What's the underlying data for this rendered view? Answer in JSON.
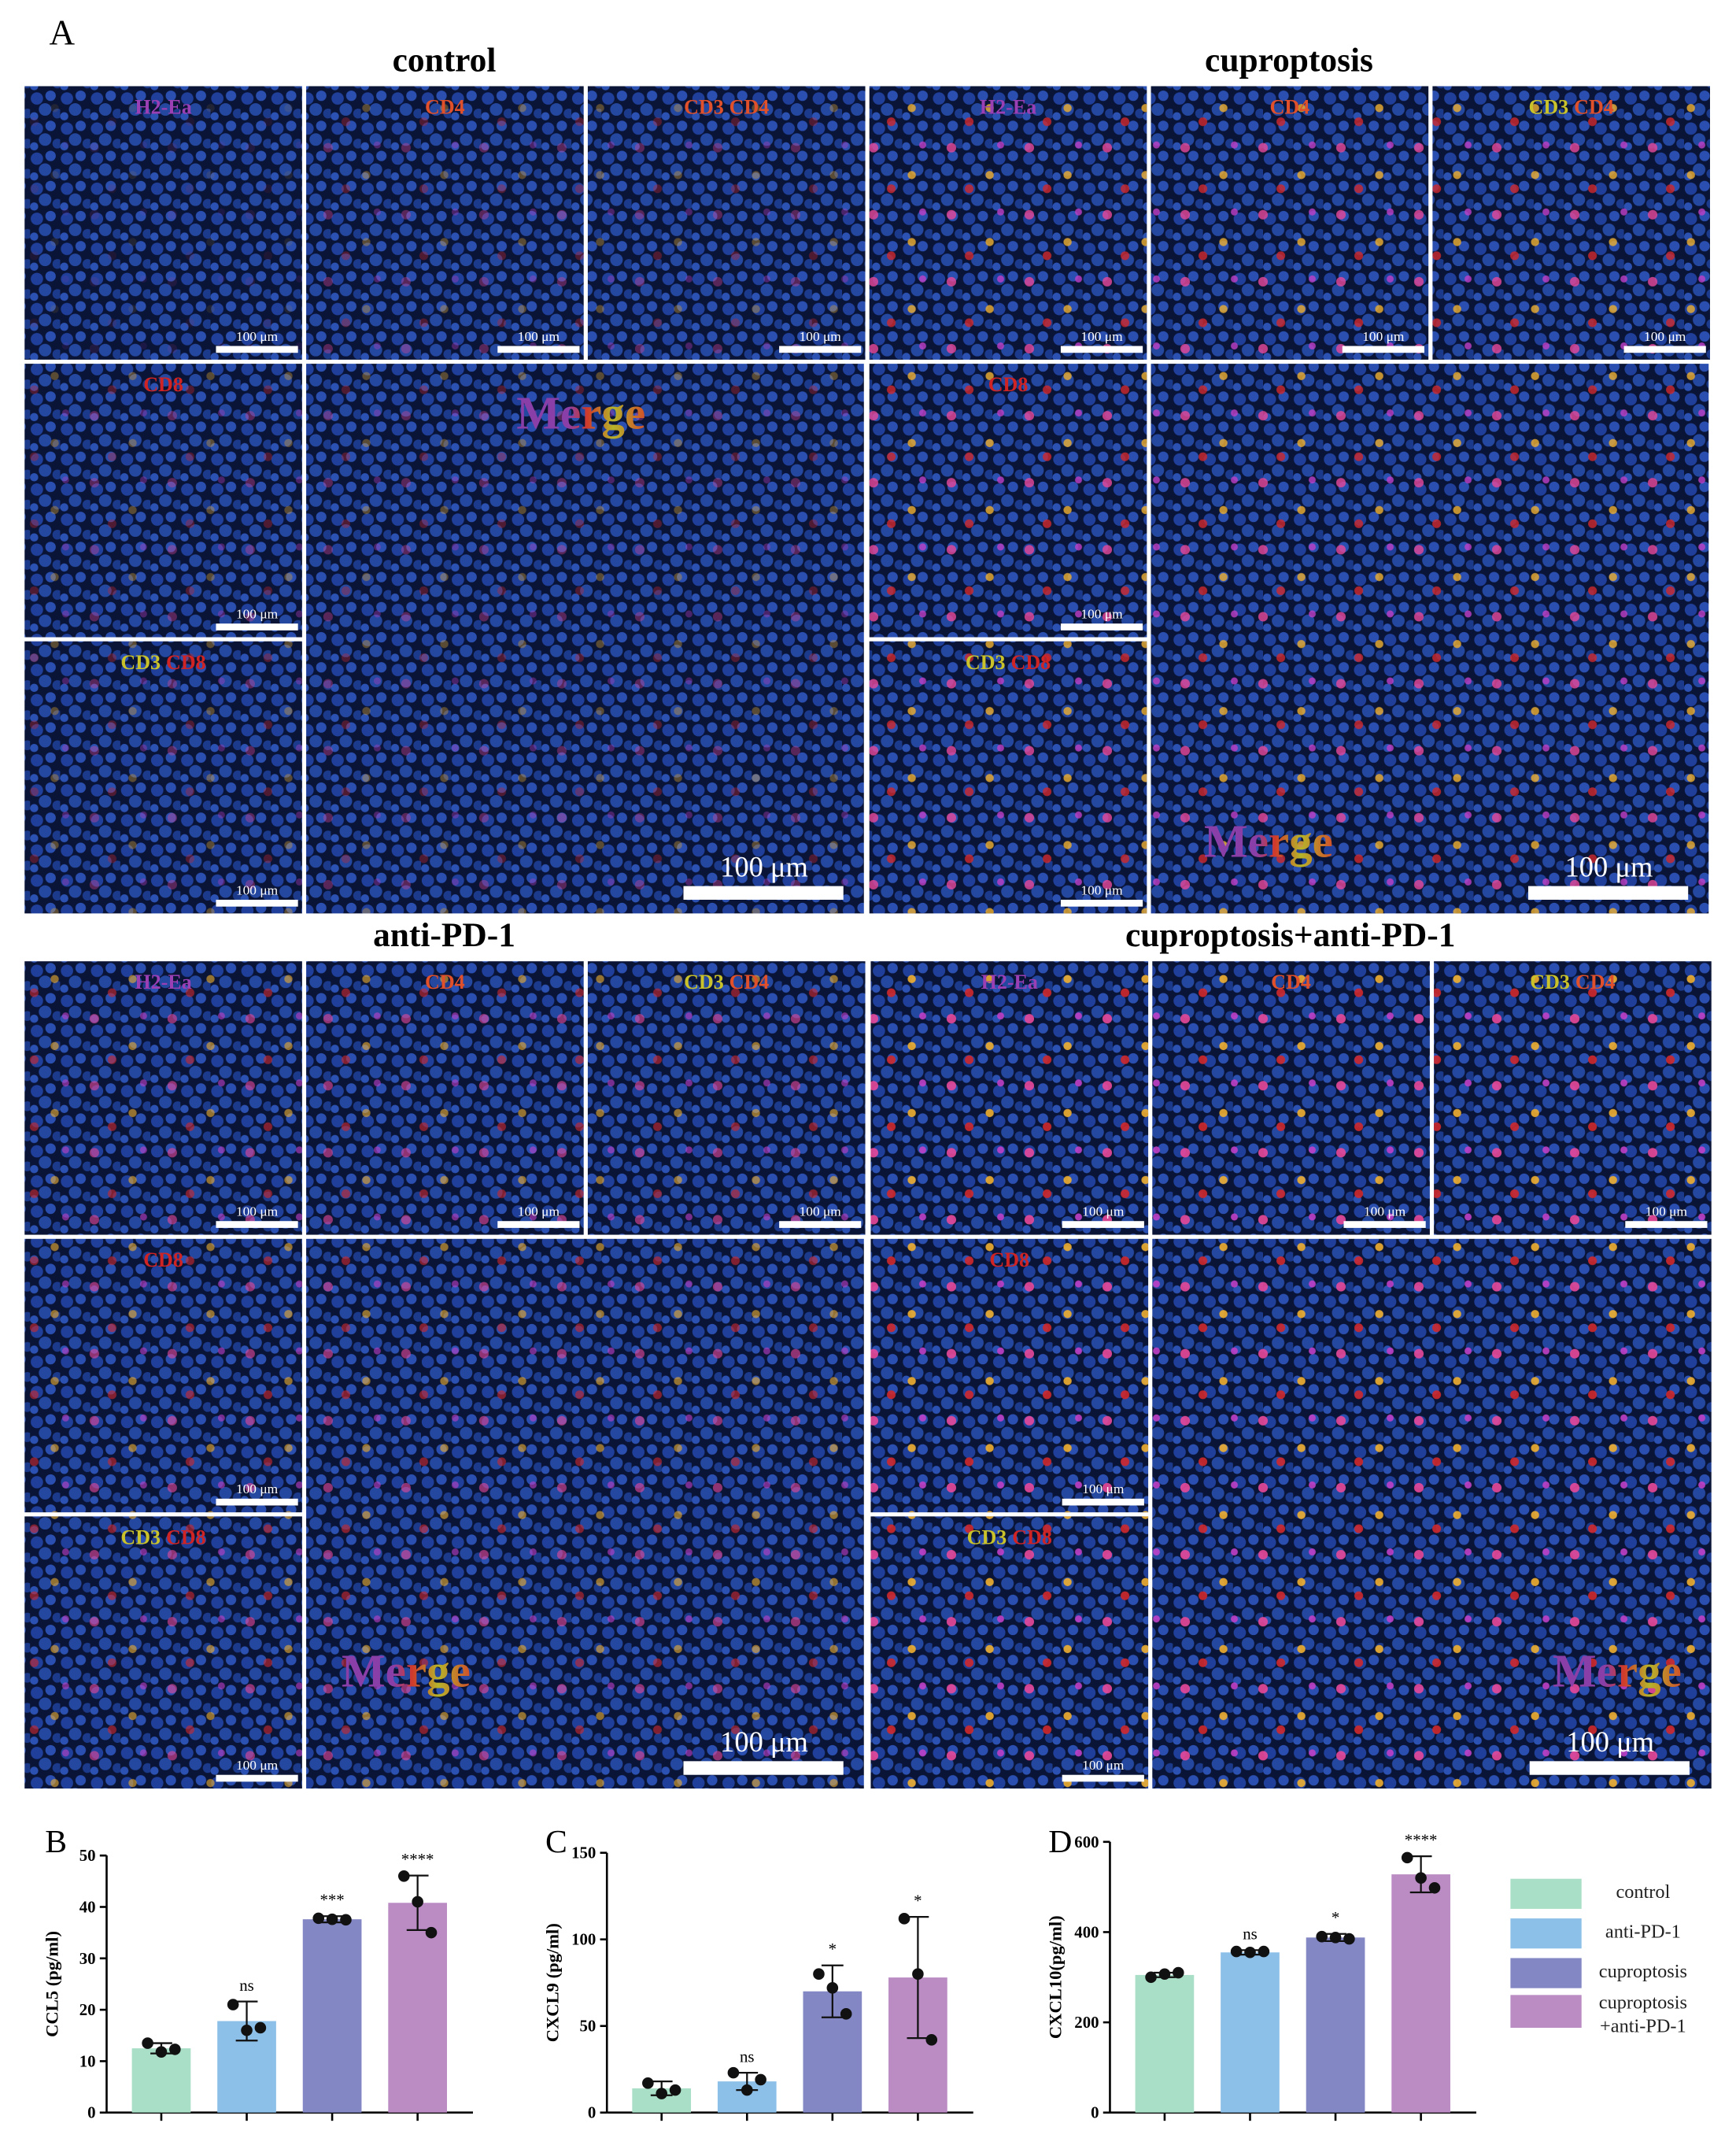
{
  "figure_a": {
    "label": "A",
    "groups": [
      {
        "title": "control",
        "tiles": [
          {
            "label": [
              {
                "text": "H2-Ea",
                "color": "#9b3fb5"
              }
            ],
            "scale": "100 μm"
          },
          {
            "label": [
              {
                "text": "CD4",
                "color": "#e0502a"
              }
            ],
            "scale": "100 μm"
          },
          {
            "label": [
              {
                "text": "CD3",
                "color": "#e0502a"
              },
              {
                "text": "CD4",
                "color": "#e0502a"
              }
            ],
            "scale": "100 μm"
          },
          {
            "label": [
              {
                "text": "CD8",
                "color": "#d02424"
              }
            ],
            "scale": "100 μm"
          },
          {
            "label": [
              {
                "text": "CD3",
                "color": "#c9c22a"
              },
              {
                "text": "CD8",
                "color": "#d02424"
              }
            ],
            "scale": "100 μm"
          }
        ],
        "merge": {
          "label": "Merge",
          "scale": "100 μm"
        }
      },
      {
        "title": "cuproptosis",
        "tiles": [
          {
            "label": [
              {
                "text": "H2-Ea",
                "color": "#9b3fb5"
              }
            ],
            "scale": "100 μm"
          },
          {
            "label": [
              {
                "text": "CD4",
                "color": "#e0502a"
              }
            ],
            "scale": "100 μm"
          },
          {
            "label": [
              {
                "text": "CD3",
                "color": "#c9c22a"
              },
              {
                "text": "CD4",
                "color": "#e0502a"
              }
            ],
            "scale": "100 μm"
          },
          {
            "label": [
              {
                "text": "CD8",
                "color": "#d02424"
              }
            ],
            "scale": "100 μm"
          },
          {
            "label": [
              {
                "text": "CD3",
                "color": "#c9c22a"
              },
              {
                "text": "CD8",
                "color": "#d02424"
              }
            ],
            "scale": "100 μm"
          }
        ],
        "merge": {
          "label": "Merge",
          "scale": "100 μm"
        }
      },
      {
        "title": "anti-PD-1",
        "tiles": [
          {
            "label": [
              {
                "text": "H2-Ea",
                "color": "#9b3fb5"
              }
            ],
            "scale": "100 μm"
          },
          {
            "label": [
              {
                "text": "CD4",
                "color": "#e0502a"
              }
            ],
            "scale": "100 μm"
          },
          {
            "label": [
              {
                "text": "CD3",
                "color": "#c9c22a"
              },
              {
                "text": "CD4",
                "color": "#e0502a"
              }
            ],
            "scale": "100 μm"
          },
          {
            "label": [
              {
                "text": "CD8",
                "color": "#d02424"
              }
            ],
            "scale": "100 μm"
          },
          {
            "label": [
              {
                "text": "CD3",
                "color": "#c9c22a"
              },
              {
                "text": "CD8",
                "color": "#d02424"
              }
            ],
            "scale": "100 μm"
          }
        ],
        "merge": {
          "label": "Merge",
          "scale": "100 μm"
        }
      },
      {
        "title": "cuproptosis+anti-PD-1",
        "tiles": [
          {
            "label": [
              {
                "text": "H2-Ea",
                "color": "#9b3fb5"
              }
            ],
            "scale": "100 μm"
          },
          {
            "label": [
              {
                "text": "CD4",
                "color": "#e0502a"
              }
            ],
            "scale": "100 μm"
          },
          {
            "label": [
              {
                "text": "CD3",
                "color": "#c9c22a"
              },
              {
                "text": "CD4",
                "color": "#e0502a"
              }
            ],
            "scale": "100 μm"
          },
          {
            "label": [
              {
                "text": "CD8",
                "color": "#d02424"
              }
            ],
            "scale": "100 μm"
          },
          {
            "label": [
              {
                "text": "CD3",
                "color": "#c9c22a"
              },
              {
                "text": "CD8",
                "color": "#d02424"
              }
            ],
            "scale": "100 μm"
          }
        ],
        "merge": {
          "label": "Merge",
          "scale": "100 μm"
        }
      }
    ]
  },
  "chart_data": [
    {
      "type": "bar",
      "panel": "B",
      "ylabel": "CCL5 (pg/ml)",
      "categories": [
        null,
        null,
        null,
        null
      ],
      "colors": [
        "#a9dfc6",
        "#8dc0e8",
        "#8387c4",
        "#bb8cc4"
      ],
      "values": [
        12.5,
        17.8,
        37.6,
        40.8
      ],
      "errors": [
        1,
        3.8,
        0.6,
        5.3
      ],
      "points": [
        [
          13.5,
          11.8,
          12.3
        ],
        [
          21,
          16,
          16.5
        ],
        [
          37.8,
          37.6,
          37.5
        ],
        [
          46,
          41,
          35
        ]
      ],
      "sig_labels": [
        null,
        "ns",
        "***",
        "****"
      ],
      "ylim": [
        0,
        50
      ],
      "yticks": [
        0,
        10,
        20,
        30,
        40,
        50
      ]
    },
    {
      "type": "bar",
      "panel": "C",
      "ylabel": "CXCL9 (pg/ml)",
      "categories": [
        null,
        null,
        null,
        null
      ],
      "colors": [
        "#a9dfc6",
        "#8dc0e8",
        "#8387c4",
        "#bb8cc4"
      ],
      "values": [
        14,
        18,
        70,
        78
      ],
      "errors": [
        4,
        5,
        15,
        35
      ],
      "points": [
        [
          17,
          11,
          13
        ],
        [
          23,
          13,
          19
        ],
        [
          80,
          72,
          57
        ],
        [
          112,
          80,
          42
        ]
      ],
      "sig_labels": [
        null,
        "ns",
        "*",
        "*"
      ],
      "ylim": [
        0,
        150
      ],
      "yticks": [
        0,
        50,
        100,
        150
      ]
    },
    {
      "type": "bar",
      "panel": "D",
      "ylabel": "CXCL10(pg/ml)",
      "categories": [
        null,
        null,
        null,
        null
      ],
      "colors": [
        "#a9dfc6",
        "#8dc0e8",
        "#8387c4",
        "#bb8cc4"
      ],
      "values": [
        305,
        355,
        388,
        528
      ],
      "errors": [
        5,
        5,
        8,
        40
      ],
      "points": [
        [
          300,
          307,
          310
        ],
        [
          357,
          355,
          357
        ],
        [
          390,
          388,
          385
        ],
        [
          565,
          520,
          498
        ]
      ],
      "sig_labels": [
        null,
        "ns",
        "*",
        "****"
      ],
      "ylim": [
        0,
        600
      ],
      "yticks": [
        0,
        200,
        400,
        600
      ]
    }
  ],
  "legend": {
    "names": [
      "control",
      "anti-PD-1",
      "cuproptosis",
      "cuproptosis +anti-PD-1"
    ],
    "colors": [
      "#a9dfc6",
      "#8dc0e8",
      "#8387c4",
      "#bb8cc4"
    ]
  }
}
